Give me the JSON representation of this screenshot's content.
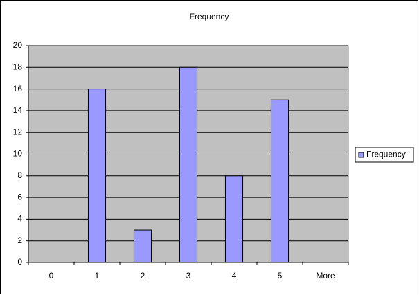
{
  "chart_data": {
    "type": "bar",
    "title": "Frequency",
    "categories": [
      "0",
      "1",
      "2",
      "3",
      "4",
      "5",
      "More"
    ],
    "series": [
      {
        "name": "Frequency",
        "color": "#9999ff",
        "values": [
          0,
          16,
          3,
          18,
          8,
          15,
          0
        ]
      }
    ],
    "ylim": [
      0,
      20
    ],
    "yticks": [
      0,
      2,
      4,
      6,
      8,
      10,
      12,
      14,
      16,
      18,
      20
    ],
    "grid": true,
    "legend": "right"
  }
}
